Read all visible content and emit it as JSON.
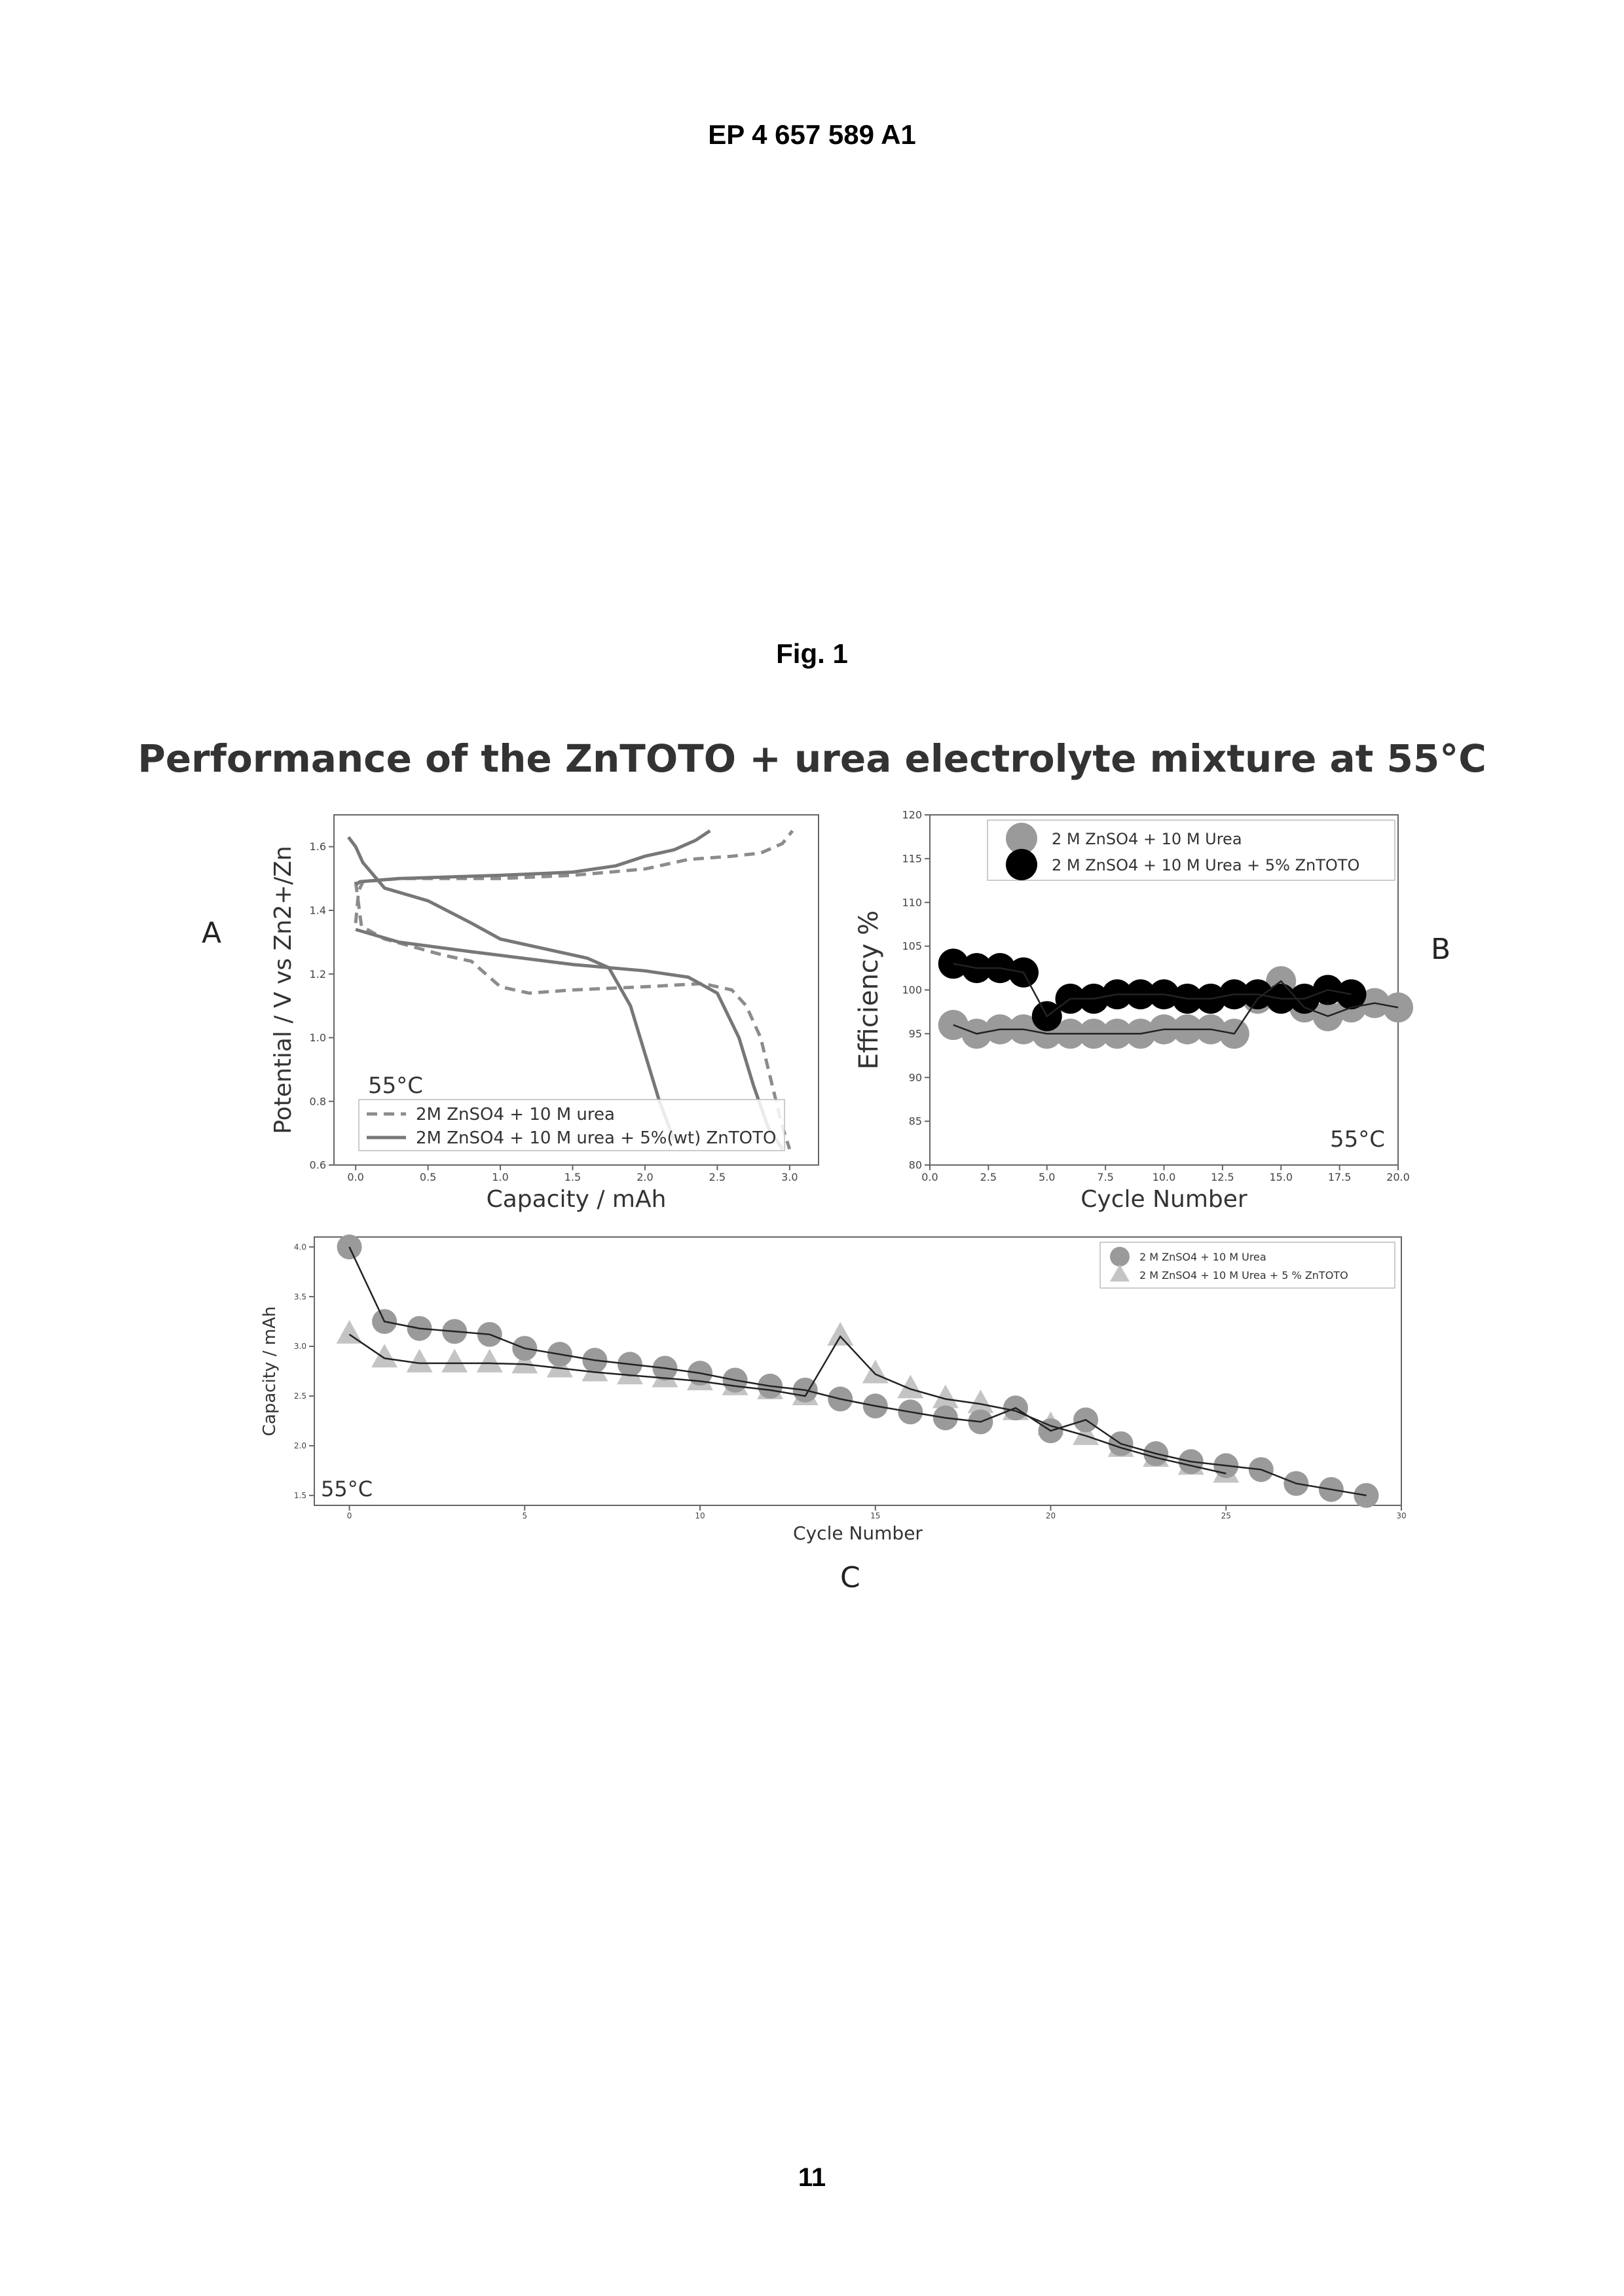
{
  "header": {
    "doc_number": "EP 4 657 589 A1"
  },
  "figure": {
    "caption": "Fig. 1",
    "title": "Performance of the ZnTOTO + urea electrolyte mixture at 55°C",
    "panel_labels": {
      "a": "A",
      "b": "B",
      "c": "C"
    }
  },
  "page_number": "11",
  "colors": {
    "series_urea": "#9a9a9a",
    "series_zntoto": "#000000",
    "line_urea": "#8c8c8c",
    "line_zntoto": "#777777",
    "triangles": "#c4c4c4"
  },
  "chart_data": [
    {
      "panel": "A",
      "type": "line",
      "xlabel": "Capacity / mAh",
      "ylabel": "Potential / V vs Zn2+/Zn",
      "xlim": [
        -0.15,
        3.2
      ],
      "ylim": [
        0.6,
        1.7
      ],
      "xticks": [
        "0.0",
        "0.5",
        "1.0",
        "1.5",
        "2.0",
        "2.5",
        "3.0"
      ],
      "yticks": [
        "0.6",
        "0.8",
        "1.0",
        "1.2",
        "1.4",
        "1.6"
      ],
      "annotation": "55°C",
      "legend": "bottom-left",
      "series": [
        {
          "name": "2M ZnSO4 + 10 M urea",
          "style": "dashed",
          "charge": [
            [
              0.0,
              1.36
            ],
            [
              0.02,
              1.46
            ],
            [
              0.05,
              1.49
            ],
            [
              0.3,
              1.5
            ],
            [
              1.0,
              1.5
            ],
            [
              1.5,
              1.51
            ],
            [
              2.0,
              1.53
            ],
            [
              2.3,
              1.56
            ],
            [
              2.6,
              1.57
            ],
            [
              2.8,
              1.58
            ],
            [
              2.95,
              1.61
            ],
            [
              3.02,
              1.65
            ]
          ],
          "discharge": [
            [
              0.0,
              1.49
            ],
            [
              0.04,
              1.35
            ],
            [
              0.2,
              1.31
            ],
            [
              0.6,
              1.26
            ],
            [
              0.8,
              1.24
            ],
            [
              0.9,
              1.2
            ],
            [
              1.0,
              1.16
            ],
            [
              1.2,
              1.14
            ],
            [
              1.5,
              1.15
            ],
            [
              2.0,
              1.16
            ],
            [
              2.4,
              1.17
            ],
            [
              2.6,
              1.15
            ],
            [
              2.7,
              1.1
            ],
            [
              2.8,
              1.0
            ],
            [
              2.88,
              0.85
            ],
            [
              2.95,
              0.72
            ],
            [
              3.0,
              0.65
            ]
          ]
        },
        {
          "name": "2M ZnSO4 + 10 M urea + 5%(wt) ZnTOTO",
          "style": "solid",
          "charge": [
            [
              0.0,
              1.48
            ],
            [
              0.03,
              1.49
            ],
            [
              0.3,
              1.5
            ],
            [
              1.0,
              1.51
            ],
            [
              1.5,
              1.52
            ],
            [
              1.8,
              1.54
            ],
            [
              2.0,
              1.57
            ],
            [
              2.2,
              1.59
            ],
            [
              2.35,
              1.62
            ],
            [
              2.45,
              1.65
            ]
          ],
          "discharge": [
            [
              -0.05,
              1.63
            ],
            [
              0.0,
              1.6
            ],
            [
              0.05,
              1.55
            ],
            [
              0.2,
              1.47
            ],
            [
              0.5,
              1.43
            ],
            [
              0.8,
              1.36
            ],
            [
              1.0,
              1.31
            ],
            [
              1.3,
              1.28
            ],
            [
              1.6,
              1.25
            ],
            [
              1.75,
              1.22
            ],
            [
              1.9,
              1.1
            ],
            [
              2.0,
              0.95
            ],
            [
              2.1,
              0.8
            ],
            [
              2.2,
              0.68
            ]
          ]
        },
        {
          "name": "",
          "style": "solid",
          "discharge": [
            [
              0.0,
              1.34
            ],
            [
              0.3,
              1.3
            ],
            [
              0.8,
              1.27
            ],
            [
              1.5,
              1.23
            ],
            [
              2.0,
              1.21
            ],
            [
              2.3,
              1.19
            ],
            [
              2.5,
              1.14
            ],
            [
              2.65,
              1.0
            ],
            [
              2.75,
              0.85
            ],
            [
              2.85,
              0.72
            ],
            [
              2.95,
              0.65
            ]
          ]
        }
      ]
    },
    {
      "panel": "B",
      "type": "scatter",
      "xlabel": "Cycle Number",
      "ylabel": "Efficiency %",
      "xlim": [
        0.0,
        20.0
      ],
      "ylim": [
        80,
        120
      ],
      "xticks": [
        "0.0",
        "2.5",
        "5.0",
        "7.5",
        "10.0",
        "12.5",
        "15.0",
        "17.5",
        "20.0"
      ],
      "yticks": [
        "80",
        "85",
        "90",
        "95",
        "100",
        "105",
        "110",
        "115",
        "120"
      ],
      "annotation": "55°C",
      "legend": "top-right",
      "series": [
        {
          "name": "2 M ZnSO4 + 10 M Urea",
          "x": [
            1,
            2,
            3,
            4,
            5,
            6,
            7,
            8,
            9,
            10,
            11,
            12,
            13,
            14,
            15,
            16,
            17,
            18,
            19,
            20
          ],
          "y": [
            96,
            95,
            95.5,
            95.5,
            95,
            95,
            95,
            95,
            95,
            95.5,
            95.5,
            95.5,
            95,
            99,
            101,
            98,
            97,
            98,
            98.5,
            98
          ]
        },
        {
          "name": "2 M ZnSO4 + 10 M Urea + 5% ZnTOTO",
          "x": [
            1,
            2,
            3,
            4,
            5,
            6,
            7,
            8,
            9,
            10,
            11,
            12,
            13,
            14,
            15,
            16,
            17,
            18
          ],
          "y": [
            103,
            102.5,
            102.5,
            102,
            97,
            99,
            99,
            99.5,
            99.5,
            99.5,
            99,
            99,
            99.5,
            99.5,
            99,
            99,
            100,
            99.5
          ]
        }
      ]
    },
    {
      "panel": "C",
      "type": "scatter",
      "xlabel": "Cycle Number",
      "ylabel": "Capacity / mAh",
      "xlim": [
        -1,
        30
      ],
      "ylim": [
        1.4,
        4.1
      ],
      "xticks": [
        "0",
        "5",
        "10",
        "15",
        "20",
        "25",
        "30"
      ],
      "yticks": [
        "1.5",
        "2.0",
        "2.5",
        "3.0",
        "3.5",
        "4.0"
      ],
      "annotation": "55°C",
      "legend": "top-right",
      "series": [
        {
          "name": "2 M ZnSO4 + 10 M Urea",
          "marker": "circle",
          "x": [
            0,
            1,
            2,
            3,
            4,
            5,
            6,
            7,
            8,
            9,
            10,
            11,
            12,
            13,
            14,
            15,
            16,
            17,
            18,
            19,
            20,
            21,
            22,
            23,
            24,
            25,
            26,
            27,
            28,
            29
          ],
          "y": [
            4.0,
            3.25,
            3.18,
            3.15,
            3.12,
            2.98,
            2.92,
            2.86,
            2.82,
            2.78,
            2.73,
            2.66,
            2.6,
            2.56,
            2.47,
            2.4,
            2.34,
            2.28,
            2.24,
            2.38,
            2.15,
            2.26,
            2.02,
            1.92,
            1.84,
            1.8,
            1.76,
            1.62,
            1.56,
            1.5
          ]
        },
        {
          "name": "2 M ZnSO4 + 10 M Urea + 5 % ZnTOTO",
          "marker": "triangle",
          "x": [
            0,
            1,
            2,
            3,
            4,
            5,
            6,
            7,
            8,
            9,
            10,
            11,
            12,
            13,
            14,
            15,
            16,
            17,
            18,
            19,
            20,
            21,
            22,
            23,
            24,
            25
          ],
          "y": [
            3.12,
            2.88,
            2.83,
            2.83,
            2.83,
            2.82,
            2.78,
            2.74,
            2.71,
            2.68,
            2.65,
            2.6,
            2.56,
            2.5,
            3.1,
            2.72,
            2.57,
            2.47,
            2.42,
            2.35,
            2.2,
            2.1,
            1.98,
            1.88,
            1.8,
            1.72
          ]
        }
      ]
    }
  ]
}
